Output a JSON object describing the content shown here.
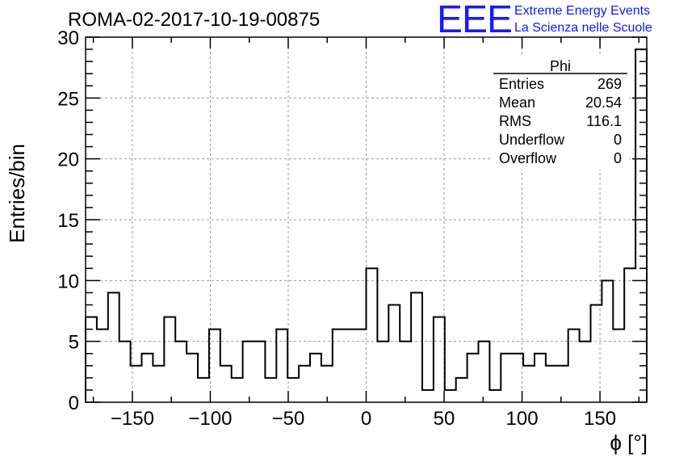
{
  "chart_data": {
    "type": "bar",
    "title": "ROMA-02-2017-10-19-00875",
    "xlabel": "ϕ [°]",
    "ylabel": "Entries/bin",
    "xlim": [
      -180,
      180
    ],
    "ylim": [
      0,
      30
    ],
    "bin_width": 7.2,
    "xticks": [
      -150,
      -100,
      -50,
      0,
      50,
      100,
      150
    ],
    "xtick_labels": [
      "−150",
      "−100",
      "−50",
      "0",
      "50",
      "100",
      "150"
    ],
    "yticks": [
      0,
      5,
      10,
      15,
      20,
      25,
      30
    ],
    "ytick_labels": [
      "0",
      "5",
      "10",
      "15",
      "20",
      "25",
      "30"
    ],
    "grid": true,
    "series": [
      {
        "name": "Phi",
        "values": [
          7,
          6,
          9,
          5,
          3,
          4,
          3,
          7,
          5,
          4,
          2,
          6,
          3,
          2,
          5,
          5,
          2,
          6,
          2,
          3,
          4,
          3,
          6,
          6,
          6,
          11,
          5,
          8,
          5,
          9,
          1,
          7,
          1,
          2,
          4,
          5,
          1,
          4,
          4,
          3,
          4,
          3,
          3,
          6,
          5,
          8,
          10,
          6,
          11,
          29
        ]
      }
    ],
    "stats_box": {
      "title": "Phi",
      "placement": "top-right",
      "rows": [
        {
          "label": "Entries",
          "value": "269"
        },
        {
          "label": "Mean",
          "value": "20.54"
        },
        {
          "label": "RMS",
          "value": "116.1"
        },
        {
          "label": "Underflow",
          "value": "0"
        },
        {
          "label": "Overflow",
          "value": "0"
        }
      ]
    }
  },
  "branding": {
    "logo_text": "EEE",
    "line1": "Extreme Energy Events",
    "line2": "La Scienza nelle Scuole",
    "color": "#1a1aff"
  }
}
